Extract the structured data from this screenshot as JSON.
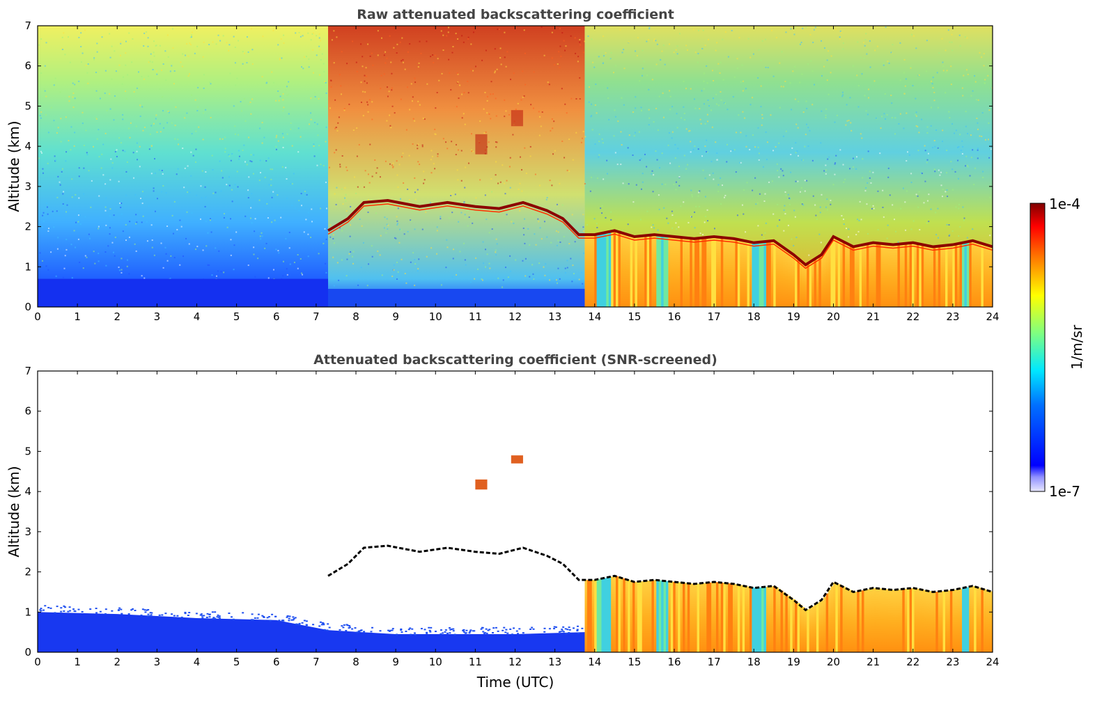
{
  "chart_data": [
    {
      "type": "heatmap",
      "title": "Raw attenuated backscattering coefficient",
      "xlabel": "",
      "ylabel": "Altitude (km)",
      "xlim": [
        0,
        24
      ],
      "ylim": [
        0,
        7
      ],
      "xticks": [
        0,
        1,
        2,
        3,
        4,
        5,
        6,
        7,
        8,
        9,
        10,
        11,
        12,
        13,
        14,
        15,
        16,
        17,
        18,
        19,
        20,
        21,
        22,
        23,
        24
      ],
      "yticks": [
        0,
        1,
        2,
        3,
        4,
        5,
        6,
        7
      ],
      "cloud_base_km": [
        [
          7.3,
          1.9
        ],
        [
          7.8,
          2.2
        ],
        [
          8.2,
          2.6
        ],
        [
          8.8,
          2.65
        ],
        [
          9.6,
          2.5
        ],
        [
          10.3,
          2.6
        ],
        [
          11.0,
          2.5
        ],
        [
          11.6,
          2.45
        ],
        [
          12.2,
          2.6
        ],
        [
          12.8,
          2.4
        ],
        [
          13.2,
          2.2
        ],
        [
          13.6,
          1.8
        ],
        [
          14.0,
          1.8
        ],
        [
          14.5,
          1.9
        ],
        [
          15.0,
          1.75
        ],
        [
          15.5,
          1.8
        ],
        [
          16.0,
          1.75
        ],
        [
          16.5,
          1.7
        ],
        [
          17.0,
          1.75
        ],
        [
          17.5,
          1.7
        ],
        [
          18.0,
          1.6
        ],
        [
          18.5,
          1.65
        ],
        [
          19.0,
          1.3
        ],
        [
          19.3,
          1.05
        ],
        [
          19.7,
          1.3
        ],
        [
          20.0,
          1.75
        ],
        [
          20.5,
          1.5
        ],
        [
          21.0,
          1.6
        ],
        [
          21.5,
          1.55
        ],
        [
          22.0,
          1.6
        ],
        [
          22.5,
          1.5
        ],
        [
          23.0,
          1.55
        ],
        [
          23.5,
          1.65
        ],
        [
          24.0,
          1.5
        ]
      ],
      "mixed_layer_onset_utc": 13.75,
      "aerosol_regions": [
        {
          "x": [
            11.0,
            11.3
          ],
          "y": [
            3.8,
            4.3
          ]
        },
        {
          "x": [
            11.9,
            12.2
          ],
          "y": [
            4.5,
            4.9
          ]
        }
      ]
    },
    {
      "type": "heatmap",
      "title": "Attenuated backscattering coefficient (SNR-screened)",
      "xlabel": "Time (UTC)",
      "ylabel": "Altitude (km)",
      "xlim": [
        0,
        24
      ],
      "ylim": [
        0,
        7
      ],
      "xticks": [
        0,
        1,
        2,
        3,
        4,
        5,
        6,
        7,
        8,
        9,
        10,
        11,
        12,
        13,
        14,
        15,
        16,
        17,
        18,
        19,
        20,
        21,
        22,
        23,
        24
      ],
      "yticks": [
        0,
        1,
        2,
        3,
        4,
        5,
        6,
        7
      ],
      "low_layer_top_km": [
        [
          0,
          1.0
        ],
        [
          2,
          0.95
        ],
        [
          4,
          0.85
        ],
        [
          6,
          0.8
        ],
        [
          7.3,
          0.55
        ],
        [
          9,
          0.45
        ],
        [
          12,
          0.45
        ],
        [
          13.75,
          0.5
        ]
      ]
    }
  ],
  "colorbar": {
    "label": "1/m/sr",
    "max_label": "1e-4",
    "min_label": "1e-7",
    "colors": [
      "#00007f",
      "#0000ff",
      "#007fff",
      "#00ffff",
      "#7fff7f",
      "#ffff00",
      "#ff7f00",
      "#ff0000",
      "#7f0000"
    ]
  }
}
